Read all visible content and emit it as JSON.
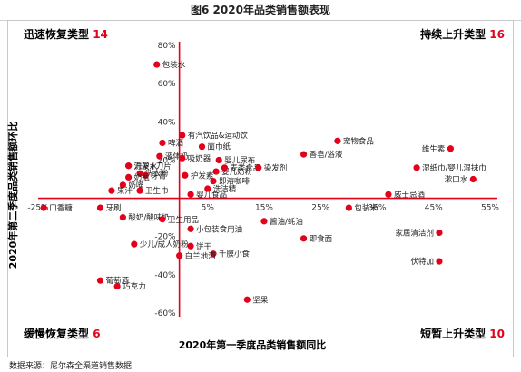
{
  "figure_title": "图6 2020年品类销售额表现",
  "source": "数据来源：尼尔森全渠道销售数据",
  "colors": {
    "dot": "#e3001b",
    "axis": "#e3001b",
    "count": "#e3001b"
  },
  "quadrants": {
    "top_left": {
      "label": "迅速恢复类型",
      "count": "14"
    },
    "top_right": {
      "label": "持续上升类型",
      "count": "16"
    },
    "bottom_left": {
      "label": "缓慢恢复类型",
      "count": "6"
    },
    "bottom_right": {
      "label": "短暂上升类型",
      "count": "10"
    }
  },
  "chart_data": {
    "type": "scatter",
    "xlabel": "2020年第一季度品类销售额同比",
    "ylabel": "2020年第二季度品类销售额环比",
    "xlim": [
      -25,
      55
    ],
    "ylim": [
      -60,
      80
    ],
    "x_ticks": [
      "-25%",
      "5%",
      "15%",
      "25%",
      "35%",
      "45%",
      "55%"
    ],
    "y_ticks": [
      "80%",
      "60%",
      "40%",
      "20%",
      "-20%",
      "-40%",
      "-60%"
    ],
    "points": [
      {
        "label": "包装水",
        "x": -4,
        "y": 70
      },
      {
        "label": "有汽饮品&运动饮",
        "x": 0.5,
        "y": 33
      },
      {
        "label": "啤酒",
        "x": -3,
        "y": 29
      },
      {
        "label": "面巾纸",
        "x": 4,
        "y": 27
      },
      {
        "label": "液体奶",
        "x": -3.5,
        "y": 22
      },
      {
        "label": "吸奶器",
        "x": 0.5,
        "y": 21
      },
      {
        "label": "婴儿尿布",
        "x": 7,
        "y": 20
      },
      {
        "label": "婴儿奶粉",
        "x": 6.5,
        "y": 14
      },
      {
        "label": "刀架+刀片",
        "x": -9,
        "y": 17
      },
      {
        "label": "宠物食品",
        "x": 28,
        "y": 30
      },
      {
        "label": "维生素",
        "x": 48,
        "y": 26
      },
      {
        "label": "香皂/浴液",
        "x": 22,
        "y": 23
      },
      {
        "label": "洗发水",
        "x": -9,
        "y": 17
      },
      {
        "label": "麦类食品",
        "x": 8,
        "y": 16
      },
      {
        "label": "染发剂",
        "x": 14,
        "y": 16
      },
      {
        "label": "湿纸巾/婴儿湿抹巾",
        "x": 42,
        "y": 16
      },
      {
        "label": "漱口水",
        "x": 52,
        "y": 10
      },
      {
        "label": "洗衣粉",
        "x": -7,
        "y": 13
      },
      {
        "label": "牙膏",
        "x": -6,
        "y": 12
      },
      {
        "label": "奶瓶",
        "x": -9,
        "y": 11
      },
      {
        "label": "护发素",
        "x": 1,
        "y": 12
      },
      {
        "label": "即溶咖啡",
        "x": 6,
        "y": 9
      },
      {
        "label": "奶嘴",
        "x": -10,
        "y": 7
      },
      {
        "label": "果汁",
        "x": -12,
        "y": 4
      },
      {
        "label": "卫生巾",
        "x": -7,
        "y": 4
      },
      {
        "label": "洗洁精",
        "x": 5,
        "y": 5
      },
      {
        "label": "婴儿食品",
        "x": 2,
        "y": 2
      },
      {
        "label": "威士忌酒",
        "x": 37,
        "y": 2
      },
      {
        "label": "口香糖",
        "x": -24,
        "y": -5
      },
      {
        "label": "牙刷",
        "x": -14,
        "y": -5
      },
      {
        "label": "酸奶/酸味奶",
        "x": -10,
        "y": -10
      },
      {
        "label": "卫生用品",
        "x": -3,
        "y": -11
      },
      {
        "label": "包装米",
        "x": 30,
        "y": -5
      },
      {
        "label": "酱油/蚝油",
        "x": 15,
        "y": -12
      },
      {
        "label": "小包装食用油",
        "x": 2,
        "y": -16
      },
      {
        "label": "家居清洁剂",
        "x": 46,
        "y": -18
      },
      {
        "label": "即食面",
        "x": 22,
        "y": -21
      },
      {
        "label": "少儿/成人奶粉",
        "x": -8,
        "y": -24
      },
      {
        "label": "饼干",
        "x": 2,
        "y": -25
      },
      {
        "label": "千膜小食",
        "x": 6,
        "y": -29
      },
      {
        "label": "白兰地酒",
        "x": 0,
        "y": -30
      },
      {
        "label": "伏特加",
        "x": 46,
        "y": -33
      },
      {
        "label": "葡萄酒",
        "x": -14,
        "y": -43
      },
      {
        "label": "巧克力",
        "x": -11,
        "y": -46
      },
      {
        "label": "坚果",
        "x": 12,
        "y": -53
      }
    ]
  }
}
